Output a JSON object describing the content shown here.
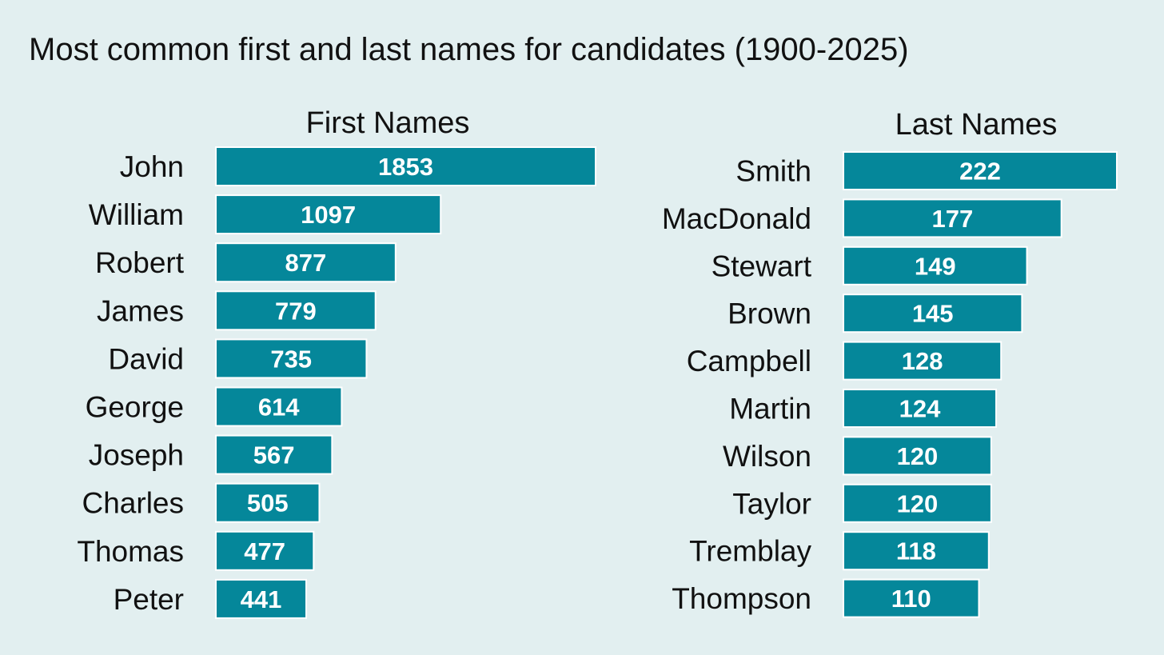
{
  "title": "Most common first and last names for candidates (1900-2025)",
  "colors": {
    "background": "#e2eff0",
    "bar": "#05879a",
    "bar_border": "#ffffff",
    "label": "#ffffff",
    "text": "#111111"
  },
  "chart_data": [
    {
      "type": "bar",
      "orientation": "horizontal",
      "title": "First Names",
      "categories": [
        "John",
        "William",
        "Robert",
        "James",
        "David",
        "George",
        "Joseph",
        "Charles",
        "Thomas",
        "Peter"
      ],
      "values": [
        1853,
        1097,
        877,
        779,
        735,
        614,
        567,
        505,
        477,
        441
      ],
      "data_labels": [
        "1853",
        "1097",
        "877",
        "779",
        "735",
        "614",
        "567",
        "505",
        "477",
        "441"
      ],
      "axes_shown": false,
      "grid": false
    },
    {
      "type": "bar",
      "orientation": "horizontal",
      "title": "Last Names",
      "categories": [
        "Smith",
        "MacDonald",
        "Stewart",
        "Brown",
        "Campbell",
        "Martin",
        "Wilson",
        "Taylor",
        "Tremblay",
        "Thompson"
      ],
      "values": [
        222,
        177,
        149,
        145,
        128,
        124,
        120,
        120,
        118,
        110
      ],
      "data_labels": [
        "222",
        "177",
        "149",
        "145",
        "128",
        "124",
        "120",
        "120",
        "118",
        "110"
      ],
      "axes_shown": false,
      "grid": false
    }
  ]
}
